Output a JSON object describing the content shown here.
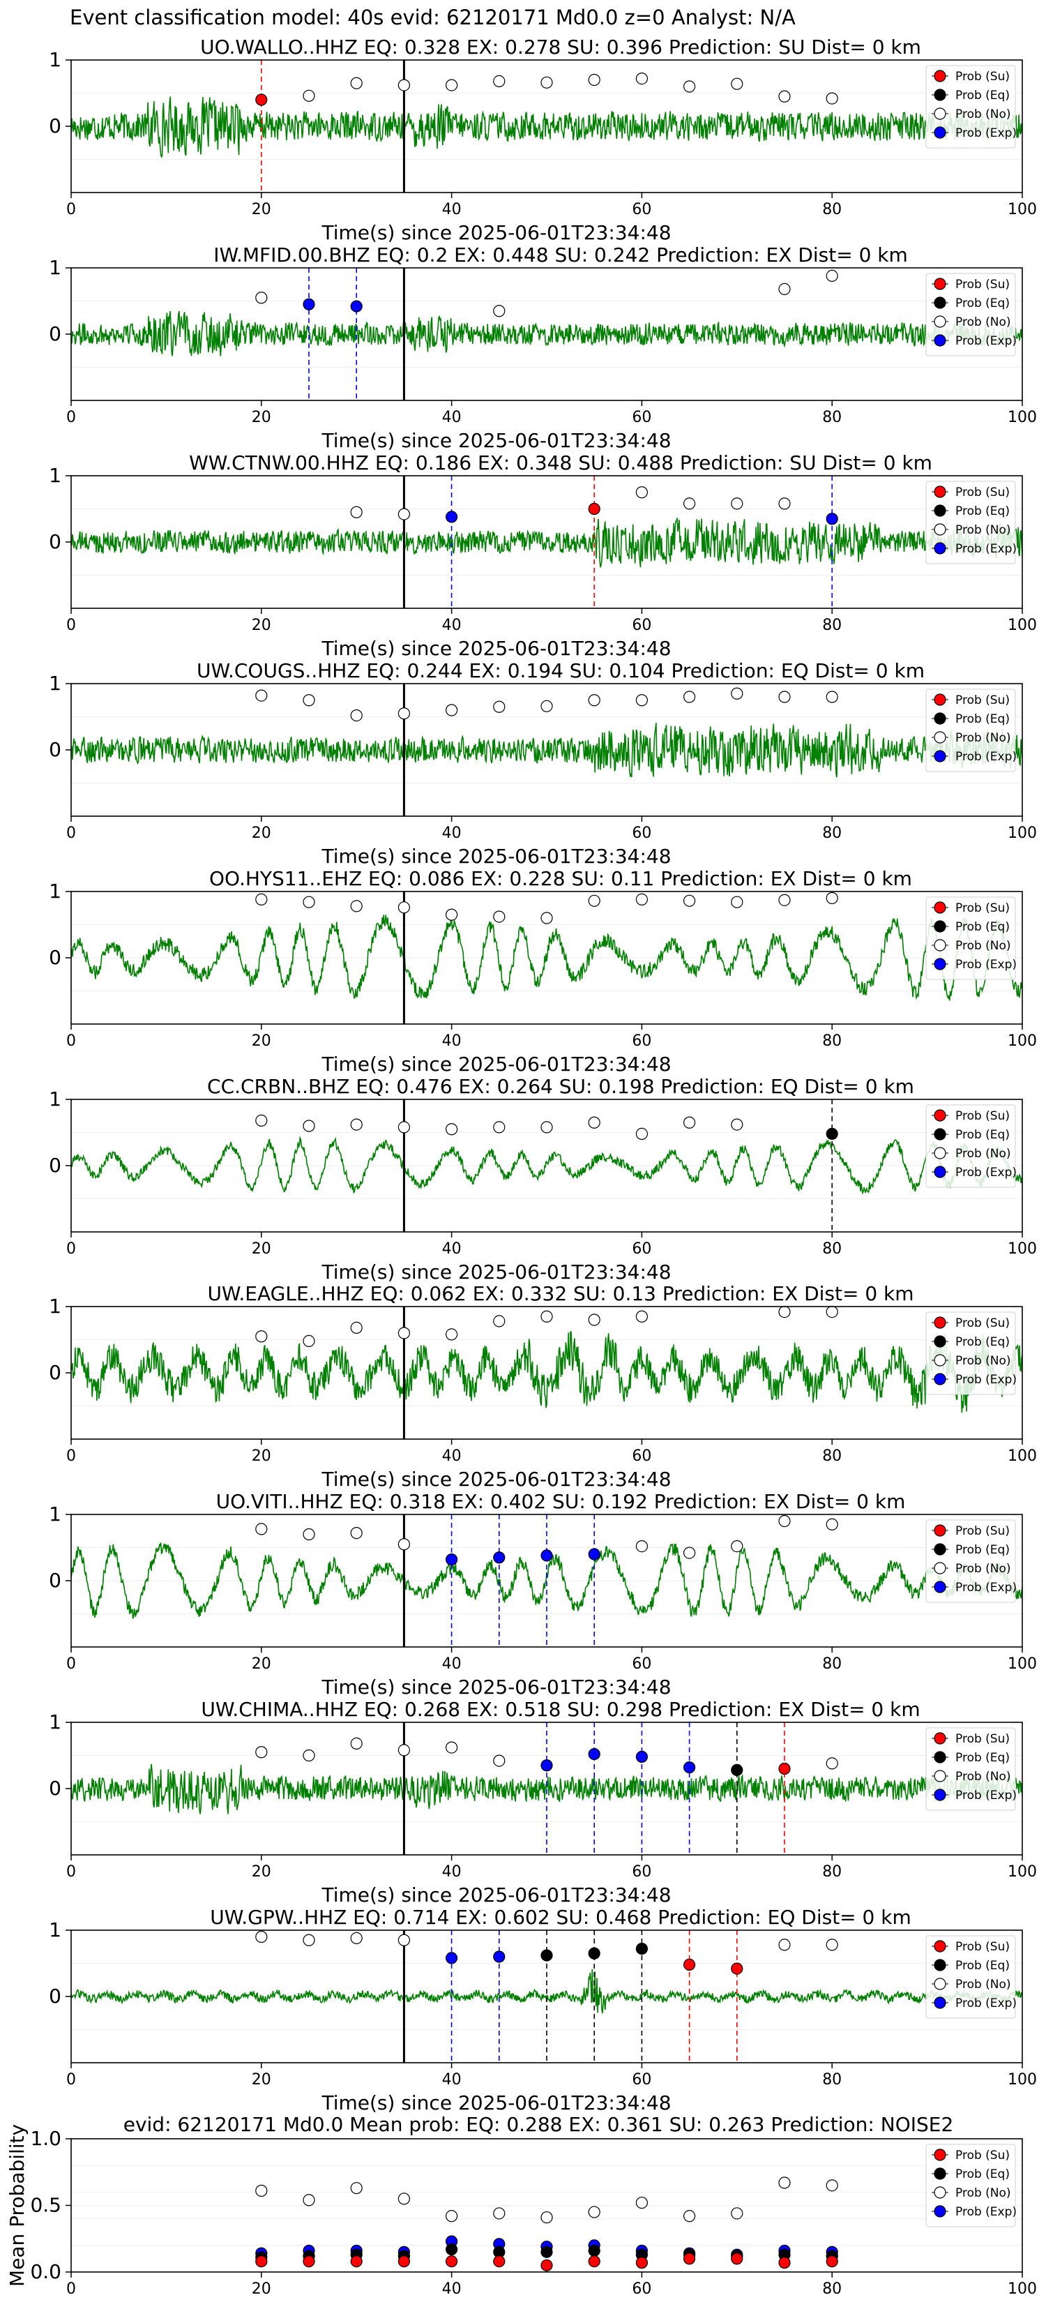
{
  "figure_title": "Event classification model: 40s evid: 62120171 Md0.0 z=0 Analyst: N/A",
  "colors": {
    "waveform": "#008000",
    "su": "#ff0000",
    "eq": "#000000",
    "no": "#ffffff",
    "exp": "#0000ff",
    "su_line": "#ff0000",
    "exp_line": "#0000ff",
    "eq_line": "#000000"
  },
  "legend_labels": [
    "Prob (Su)",
    "Prob (Eq)",
    "Prob (No)",
    "Prob (Exp)"
  ],
  "chart_data": [
    {
      "type": "line",
      "station": "UO.WALLO..HHZ",
      "title": "UO.WALLO..HHZ   EQ: 0.328   EX: 0.278   SU: 0.396   Prediction: SU    Dist= 0 km",
      "xlabel": "Time(s) since 2025-06-01T23:34:48",
      "xlim": [
        0,
        100
      ],
      "ylim": [
        -1,
        1
      ],
      "xticks": [
        "0",
        "20",
        "40",
        "60",
        "80",
        "100"
      ],
      "yticks": [
        "1",
        "0"
      ],
      "noise_amplitude": 0.35,
      "style": "broadband",
      "legend_position": "top-right",
      "origin_time": 35,
      "prob_no": [
        [
          25,
          0.46
        ],
        [
          30,
          0.65
        ],
        [
          35,
          0.62
        ],
        [
          40,
          0.62
        ],
        [
          45,
          0.68
        ],
        [
          50,
          0.66
        ],
        [
          55,
          0.7
        ],
        [
          60,
          0.72
        ],
        [
          65,
          0.6
        ],
        [
          70,
          0.64
        ],
        [
          75,
          0.45
        ],
        [
          80,
          0.42
        ]
      ],
      "prob_su": [
        [
          20,
          0.4
        ]
      ],
      "prob_eq": [],
      "prob_exp": [],
      "picks": [
        {
          "t": 20,
          "cls": "su"
        }
      ]
    },
    {
      "type": "line",
      "station": "IW.MFID.00.BHZ",
      "title": "IW.MFID.00.BHZ   EQ: 0.2  EX: 0.448  SU: 0.242   Prediction: EX    Dist= 0 km",
      "xlabel": "Time(s) since 2025-06-01T23:34:48",
      "xlim": [
        0,
        100
      ],
      "ylim": [
        -1,
        1
      ],
      "xticks": [
        "0",
        "20",
        "40",
        "60",
        "80",
        "100"
      ],
      "yticks": [
        "1",
        "0"
      ],
      "noise_amplitude": 0.28,
      "style": "broadband",
      "legend_position": "top-right",
      "origin_time": 35,
      "prob_no": [
        [
          20,
          0.55
        ],
        [
          45,
          0.35
        ],
        [
          75,
          0.68
        ],
        [
          80,
          0.88
        ]
      ],
      "prob_su": [],
      "prob_eq": [],
      "prob_exp": [
        [
          25,
          0.45
        ],
        [
          30,
          0.42
        ]
      ],
      "picks": [
        {
          "t": 25,
          "cls": "exp"
        },
        {
          "t": 30,
          "cls": "exp"
        }
      ]
    },
    {
      "type": "line",
      "station": "WW.CTNW.00.HHZ",
      "title": "WW.CTNW.00.HHZ   EQ: 0.186  EX: 0.348  SU: 0.488   Prediction: SU    Dist= 0 km",
      "xlabel": "Time(s) since 2025-06-01T23:34:48",
      "xlim": [
        0,
        100
      ],
      "ylim": [
        -1,
        1
      ],
      "xticks": [
        "0",
        "20",
        "40",
        "60",
        "80",
        "100"
      ],
      "yticks": [
        "1",
        "0"
      ],
      "noise_amplitude": 0.3,
      "style": "burst",
      "legend_position": "top-right",
      "origin_time": 35,
      "prob_no": [
        [
          30,
          0.45
        ],
        [
          35,
          0.42
        ],
        [
          60,
          0.75
        ],
        [
          65,
          0.58
        ],
        [
          70,
          0.58
        ],
        [
          75,
          0.58
        ]
      ],
      "prob_su": [
        [
          55,
          0.5
        ]
      ],
      "prob_eq": [],
      "prob_exp": [
        [
          40,
          0.38
        ],
        [
          80,
          0.35
        ]
      ],
      "picks": [
        {
          "t": 40,
          "cls": "exp"
        },
        {
          "t": 55,
          "cls": "su"
        },
        {
          "t": 80,
          "cls": "exp"
        }
      ]
    },
    {
      "type": "line",
      "station": "UW.COUGS..HHZ",
      "title": "UW.COUGS..HHZ   EQ: 0.244  EX: 0.194  SU: 0.104   Prediction: EQ    Dist= 0 km",
      "xlabel": "Time(s) since 2025-06-01T23:34:48",
      "xlim": [
        0,
        100
      ],
      "ylim": [
        -1,
        1
      ],
      "xticks": [
        "0",
        "20",
        "40",
        "60",
        "80",
        "100"
      ],
      "yticks": [
        "1",
        "0"
      ],
      "noise_amplitude": 0.33,
      "style": "burst",
      "legend_position": "top-right",
      "origin_time": 35,
      "prob_no": [
        [
          20,
          0.82
        ],
        [
          25,
          0.75
        ],
        [
          30,
          0.52
        ],
        [
          35,
          0.55
        ],
        [
          40,
          0.6
        ],
        [
          45,
          0.65
        ],
        [
          50,
          0.66
        ],
        [
          55,
          0.75
        ],
        [
          60,
          0.75
        ],
        [
          65,
          0.8
        ],
        [
          70,
          0.85
        ],
        [
          75,
          0.8
        ],
        [
          80,
          0.8
        ]
      ],
      "prob_su": [],
      "prob_eq": [],
      "prob_exp": [],
      "picks": []
    },
    {
      "type": "line",
      "station": "OO.HYS11..EHZ",
      "title": "OO.HYS11..EHZ   EQ: 0.086  EX: 0.228  SU: 0.11   Prediction: EX    Dist= 0 km",
      "xlabel": "Time(s) since 2025-06-01T23:34:48",
      "xlim": [
        0,
        100
      ],
      "ylim": [
        -1,
        1
      ],
      "xticks": [
        "0",
        "20",
        "40",
        "60",
        "80",
        "100"
      ],
      "yticks": [
        "1",
        "0"
      ],
      "noise_amplitude": 0.5,
      "style": "oscillatory",
      "legend_position": "top-right",
      "origin_time": 35,
      "prob_no": [
        [
          20,
          0.88
        ],
        [
          25,
          0.84
        ],
        [
          30,
          0.78
        ],
        [
          35,
          0.76
        ],
        [
          40,
          0.65
        ],
        [
          45,
          0.62
        ],
        [
          50,
          0.6
        ],
        [
          55,
          0.86
        ],
        [
          60,
          0.88
        ],
        [
          65,
          0.86
        ],
        [
          70,
          0.84
        ],
        [
          75,
          0.87
        ],
        [
          80,
          0.9
        ]
      ],
      "prob_su": [],
      "prob_eq": [],
      "prob_exp": [],
      "picks": []
    },
    {
      "type": "line",
      "station": "CC.CRBN..BHZ",
      "title": "CC.CRBN..BHZ   EQ: 0.476  EX: 0.264  SU: 0.198   Prediction: EQ    Dist= 0 km",
      "xlabel": "Time(s) since 2025-06-01T23:34:48",
      "xlim": [
        0,
        100
      ],
      "ylim": [
        -1,
        1
      ],
      "xticks": [
        "0",
        "20",
        "40",
        "60",
        "80",
        "100"
      ],
      "yticks": [
        "1",
        "0"
      ],
      "noise_amplitude": 0.32,
      "style": "oscillatory",
      "legend_position": "top-right",
      "origin_time": 35,
      "prob_no": [
        [
          20,
          0.68
        ],
        [
          25,
          0.6
        ],
        [
          30,
          0.62
        ],
        [
          35,
          0.58
        ],
        [
          40,
          0.55
        ],
        [
          45,
          0.58
        ],
        [
          50,
          0.58
        ],
        [
          55,
          0.65
        ],
        [
          60,
          0.48
        ],
        [
          65,
          0.65
        ],
        [
          70,
          0.62
        ]
      ],
      "prob_su": [],
      "prob_eq": [
        [
          80,
          0.48
        ]
      ],
      "prob_exp": [],
      "picks": [
        {
          "t": 80,
          "cls": "eq"
        }
      ]
    },
    {
      "type": "line",
      "station": "UW.EAGLE..HHZ",
      "title": "UW.EAGLE..HHZ   EQ: 0.062  EX: 0.332  SU: 0.13   Prediction: EX    Dist= 0 km",
      "xlabel": "Time(s) since 2025-06-01T23:34:48",
      "xlim": [
        0,
        100
      ],
      "ylim": [
        -1,
        1
      ],
      "xticks": [
        "0",
        "20",
        "40",
        "60",
        "80",
        "100"
      ],
      "yticks": [
        "1",
        "0"
      ],
      "noise_amplitude": 0.4,
      "style": "mixed",
      "legend_position": "top-right",
      "origin_time": 35,
      "prob_no": [
        [
          20,
          0.55
        ],
        [
          25,
          0.48
        ],
        [
          30,
          0.68
        ],
        [
          35,
          0.6
        ],
        [
          40,
          0.58
        ],
        [
          45,
          0.78
        ],
        [
          50,
          0.85
        ],
        [
          55,
          0.8
        ],
        [
          60,
          0.85
        ],
        [
          75,
          0.92
        ],
        [
          80,
          0.92
        ]
      ],
      "prob_su": [],
      "prob_eq": [],
      "prob_exp": [],
      "picks": []
    },
    {
      "type": "line",
      "station": "UO.VITI..HHZ",
      "title": "UO.VITI..HHZ   EQ: 0.318  EX: 0.402  SU: 0.192    Prediction: EX    Dist= 0 km",
      "xlabel": "Time(s) since 2025-06-01T23:34:48",
      "xlim": [
        0,
        100
      ],
      "ylim": [
        -1,
        1
      ],
      "xticks": [
        "0",
        "20",
        "40",
        "60",
        "80",
        "100"
      ],
      "yticks": [
        "1",
        "0"
      ],
      "noise_amplitude": 0.45,
      "style": "oscillatory",
      "legend_position": "top-right",
      "origin_time": 35,
      "prob_no": [
        [
          20,
          0.78
        ],
        [
          25,
          0.7
        ],
        [
          30,
          0.72
        ],
        [
          35,
          0.55
        ],
        [
          60,
          0.52
        ],
        [
          65,
          0.42
        ],
        [
          70,
          0.52
        ],
        [
          75,
          0.9
        ],
        [
          80,
          0.85
        ]
      ],
      "prob_su": [],
      "prob_eq": [],
      "prob_exp": [
        [
          40,
          0.32
        ],
        [
          45,
          0.35
        ],
        [
          50,
          0.38
        ],
        [
          55,
          0.4
        ]
      ],
      "picks": [
        {
          "t": 40,
          "cls": "exp"
        },
        {
          "t": 45,
          "cls": "exp"
        },
        {
          "t": 50,
          "cls": "exp"
        },
        {
          "t": 55,
          "cls": "exp"
        }
      ]
    },
    {
      "type": "line",
      "station": "UW.CHIMA..HHZ",
      "title": "UW.CHIMA..HHZ   EQ: 0.268  EX: 0.518  SU: 0.298   Prediction: EX    Dist= 0 km",
      "xlabel": "Time(s) since 2025-06-01T23:34:48",
      "xlim": [
        0,
        100
      ],
      "ylim": [
        -1,
        1
      ],
      "xticks": [
        "0",
        "20",
        "40",
        "60",
        "80",
        "100"
      ],
      "yticks": [
        "1",
        "0"
      ],
      "noise_amplitude": 0.3,
      "style": "broadband",
      "legend_position": "top-right",
      "origin_time": 35,
      "prob_no": [
        [
          20,
          0.55
        ],
        [
          25,
          0.5
        ],
        [
          30,
          0.68
        ],
        [
          35,
          0.58
        ],
        [
          40,
          0.62
        ],
        [
          45,
          0.42
        ],
        [
          80,
          0.38
        ]
      ],
      "prob_su": [
        [
          75,
          0.3
        ]
      ],
      "prob_eq": [
        [
          70,
          0.28
        ]
      ],
      "prob_exp": [
        [
          50,
          0.35
        ],
        [
          55,
          0.52
        ],
        [
          60,
          0.48
        ],
        [
          65,
          0.32
        ]
      ],
      "picks": [
        {
          "t": 50,
          "cls": "exp"
        },
        {
          "t": 55,
          "cls": "exp"
        },
        {
          "t": 60,
          "cls": "exp"
        },
        {
          "t": 65,
          "cls": "exp"
        },
        {
          "t": 70,
          "cls": "eq"
        },
        {
          "t": 75,
          "cls": "su"
        }
      ]
    },
    {
      "type": "line",
      "station": "UW.GPW..HHZ",
      "title": "UW.GPW..HHZ   EQ: 0.714  EX: 0.602  SU: 0.468   Prediction: EQ    Dist= 0 km",
      "xlabel": "Time(s) since 2025-06-01T23:34:48",
      "xlim": [
        0,
        100
      ],
      "ylim": [
        -1,
        1
      ],
      "xticks": [
        "0",
        "20",
        "40",
        "60",
        "80",
        "100"
      ],
      "yticks": [
        "1",
        "0"
      ],
      "noise_amplitude": 0.1,
      "style": "quiet",
      "legend_position": "top-right",
      "origin_time": 35,
      "prob_no": [
        [
          20,
          0.9
        ],
        [
          25,
          0.85
        ],
        [
          30,
          0.88
        ],
        [
          35,
          0.85
        ],
        [
          75,
          0.78
        ],
        [
          80,
          0.78
        ]
      ],
      "prob_su": [
        [
          65,
          0.48
        ],
        [
          70,
          0.42
        ]
      ],
      "prob_eq": [
        [
          50,
          0.62
        ],
        [
          55,
          0.65
        ],
        [
          60,
          0.72
        ]
      ],
      "prob_exp": [
        [
          40,
          0.58
        ],
        [
          45,
          0.6
        ]
      ],
      "picks": [
        {
          "t": 40,
          "cls": "exp"
        },
        {
          "t": 45,
          "cls": "exp"
        },
        {
          "t": 50,
          "cls": "eq"
        },
        {
          "t": 55,
          "cls": "eq"
        },
        {
          "t": 60,
          "cls": "eq"
        },
        {
          "t": 65,
          "cls": "su"
        },
        {
          "t": 70,
          "cls": "su"
        }
      ]
    },
    {
      "type": "scatter",
      "title": "evid: 62120171  Md0.0   Mean prob:   EQ: 0.288  EX: 0.361  SU: 0.263   Prediction: NOISE2",
      "ylabel": "Mean Probability",
      "xlim": [
        0,
        100
      ],
      "ylim": [
        0,
        1
      ],
      "xticks": [
        "0",
        "20",
        "40",
        "60",
        "80",
        "100"
      ],
      "yticks": [
        "0.0",
        "0.5",
        "1.0"
      ],
      "legend_position": "top-right",
      "x": [
        20,
        25,
        30,
        35,
        40,
        45,
        50,
        55,
        60,
        65,
        70,
        75,
        80
      ],
      "prob_no": [
        0.61,
        0.54,
        0.63,
        0.55,
        0.42,
        0.44,
        0.41,
        0.45,
        0.52,
        0.42,
        0.44,
        0.67,
        0.65
      ],
      "prob_exp": [
        0.14,
        0.16,
        0.16,
        0.15,
        0.23,
        0.21,
        0.19,
        0.2,
        0.16,
        0.14,
        0.13,
        0.16,
        0.15
      ],
      "prob_eq": [
        0.11,
        0.12,
        0.13,
        0.12,
        0.17,
        0.15,
        0.15,
        0.16,
        0.13,
        0.13,
        0.12,
        0.13,
        0.12
      ],
      "prob_su": [
        0.08,
        0.08,
        0.08,
        0.08,
        0.08,
        0.08,
        0.05,
        0.08,
        0.07,
        0.1,
        0.1,
        0.07,
        0.08
      ]
    }
  ]
}
